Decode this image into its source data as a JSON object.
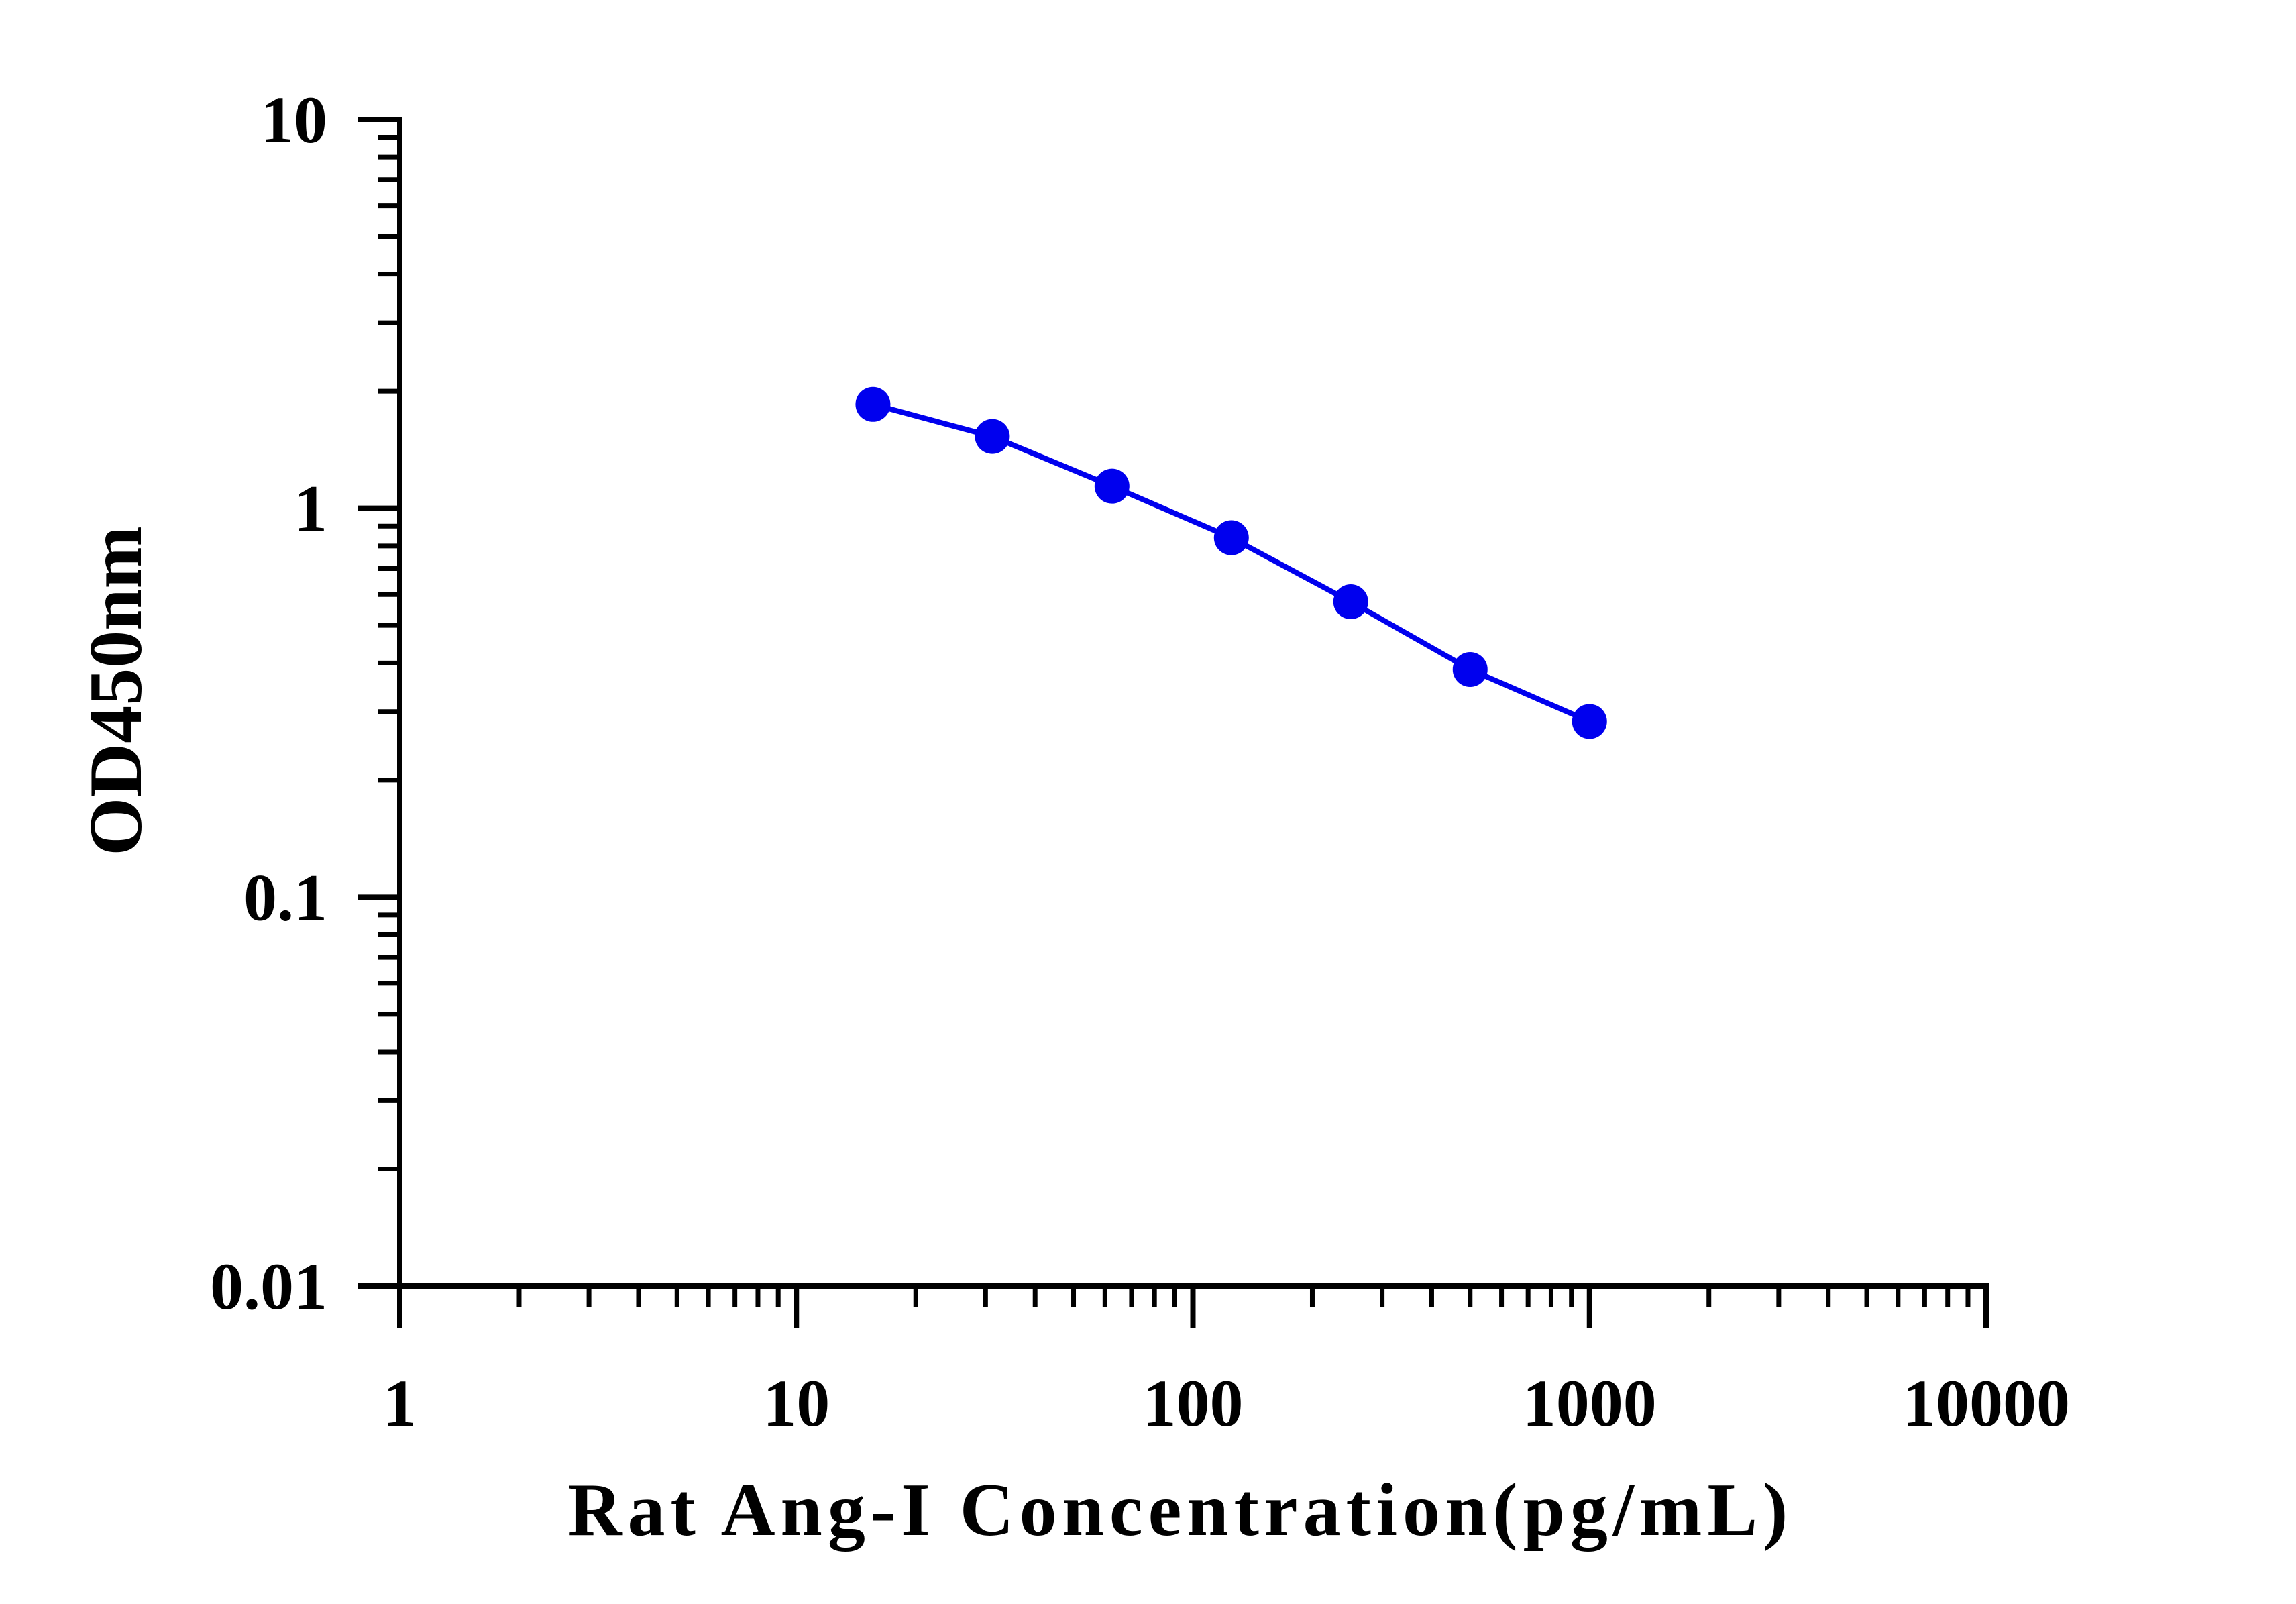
{
  "chart_data": {
    "type": "line",
    "title": "",
    "xlabel": "Rat Ang-I Concentration(pg/mL)",
    "ylabel": "OD450nm",
    "xscale": "log",
    "yscale": "log",
    "xlim": [
      1,
      10000
    ],
    "ylim": [
      0.01,
      10
    ],
    "xticks": [
      "1",
      "10",
      "100",
      "1000",
      "10000"
    ],
    "yticks": [
      "10",
      "1",
      "0.1",
      "0.01"
    ],
    "grid": false,
    "series": [
      {
        "x": [
          15.6,
          31.2,
          62.5,
          125,
          250,
          500,
          1000
        ],
        "y": [
          1.85,
          1.53,
          1.14,
          0.84,
          0.575,
          0.385,
          0.283
        ],
        "color": "#0000ee",
        "marker": "circle"
      }
    ]
  }
}
